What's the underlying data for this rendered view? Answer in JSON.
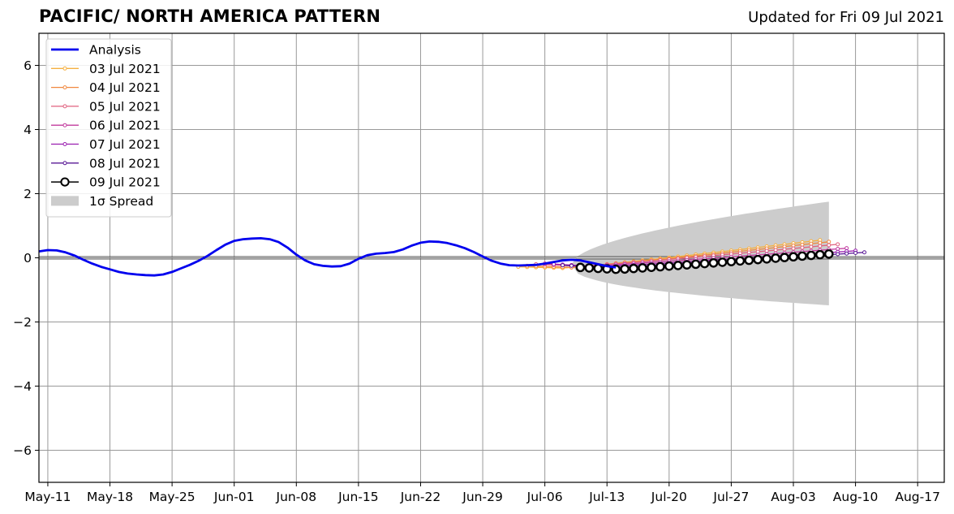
{
  "title": "PACIFIC/ NORTH AMERICA PATTERN",
  "subtitle": "Updated for Fri 09 Jul 2021",
  "chart_data": {
    "type": "line",
    "ylim": [
      -7,
      7
    ],
    "xlim": [
      "2021-05-10",
      "2021-08-20"
    ],
    "grid": true,
    "legend_position": "top-left",
    "yticks": [
      -6,
      -4,
      -2,
      0,
      2,
      4,
      6
    ],
    "ytick_labels": [
      "−6",
      "−4",
      "−2",
      "0",
      "2",
      "4",
      "6"
    ],
    "xticks": [
      "2021-05-11",
      "2021-05-18",
      "2021-05-25",
      "2021-06-01",
      "2021-06-08",
      "2021-06-15",
      "2021-06-22",
      "2021-06-29",
      "2021-07-06",
      "2021-07-13",
      "2021-07-20",
      "2021-07-27",
      "2021-08-03",
      "2021-08-10",
      "2021-08-17"
    ],
    "xtick_labels": [
      "May-11",
      "May-18",
      "May-25",
      "Jun-01",
      "Jun-08",
      "Jun-15",
      "Jun-22",
      "Jun-29",
      "Jul-06",
      "Jul-13",
      "Jul-20",
      "Jul-27",
      "Aug-03",
      "Aug-10",
      "Aug-17"
    ],
    "analysis": {
      "name": "Analysis",
      "color": "#0000ee",
      "start": "2021-05-10",
      "values": [
        0.2,
        0.24,
        0.23,
        0.17,
        0.07,
        -0.06,
        -0.18,
        -0.28,
        -0.36,
        -0.44,
        -0.49,
        -0.52,
        -0.54,
        -0.55,
        -0.52,
        -0.44,
        -0.33,
        -0.22,
        -0.09,
        0.06,
        0.24,
        0.41,
        0.53,
        0.58,
        0.6,
        0.61,
        0.58,
        0.49,
        0.32,
        0.1,
        -0.08,
        -0.2,
        -0.25,
        -0.27,
        -0.26,
        -0.18,
        -0.03,
        0.08,
        0.13,
        0.15,
        0.18,
        0.26,
        0.38,
        0.47,
        0.51,
        0.5,
        0.46,
        0.39,
        0.3,
        0.18,
        0.04,
        -0.09,
        -0.18,
        -0.23,
        -0.24,
        -0.23,
        -0.22,
        -0.18,
        -0.13,
        -0.08,
        -0.06,
        -0.08,
        -0.14,
        -0.2,
        -0.26,
        -0.3
      ]
    },
    "forecasts": [
      {
        "name": "03 Jul 2021",
        "color": "#f5b041",
        "start": "2021-07-03",
        "v0": -0.28,
        "vmin": -0.32,
        "vend": 0.55,
        "days": 35,
        "marker": "small"
      },
      {
        "name": "04 Jul 2021",
        "color": "#f0883e",
        "start": "2021-07-04",
        "v0": -0.25,
        "vmin": -0.3,
        "vend": 0.5,
        "days": 35,
        "marker": "small"
      },
      {
        "name": "05 Jul 2021",
        "color": "#e0607e",
        "start": "2021-07-05",
        "v0": -0.2,
        "vmin": -0.26,
        "vend": 0.42,
        "days": 35,
        "marker": "small"
      },
      {
        "name": "06 Jul 2021",
        "color": "#c23b9e",
        "start": "2021-07-06",
        "v0": -0.18,
        "vmin": -0.26,
        "vend": 0.3,
        "days": 35,
        "marker": "small"
      },
      {
        "name": "07 Jul 2021",
        "color": "#9a1fb0",
        "start": "2021-07-07",
        "v0": -0.2,
        "vmin": -0.28,
        "vend": 0.22,
        "days": 35,
        "marker": "small"
      },
      {
        "name": "08 Jul 2021",
        "color": "#5a1a96",
        "start": "2021-07-08",
        "v0": -0.23,
        "vmin": -0.32,
        "vend": 0.17,
        "days": 35,
        "marker": "small"
      },
      {
        "name": "09 Jul 2021",
        "color": "#000000",
        "start": "2021-07-10",
        "v0": -0.3,
        "vmin": -0.36,
        "vend": 0.12,
        "days": 29,
        "marker": "large"
      }
    ],
    "spread": {
      "name": "1σ Spread",
      "color": "#cccccc",
      "start": "2021-07-09",
      "end": "2021-08-07",
      "upper": [
        -0.2,
        1.75
      ],
      "lower": [
        -0.2,
        -1.48
      ]
    }
  }
}
